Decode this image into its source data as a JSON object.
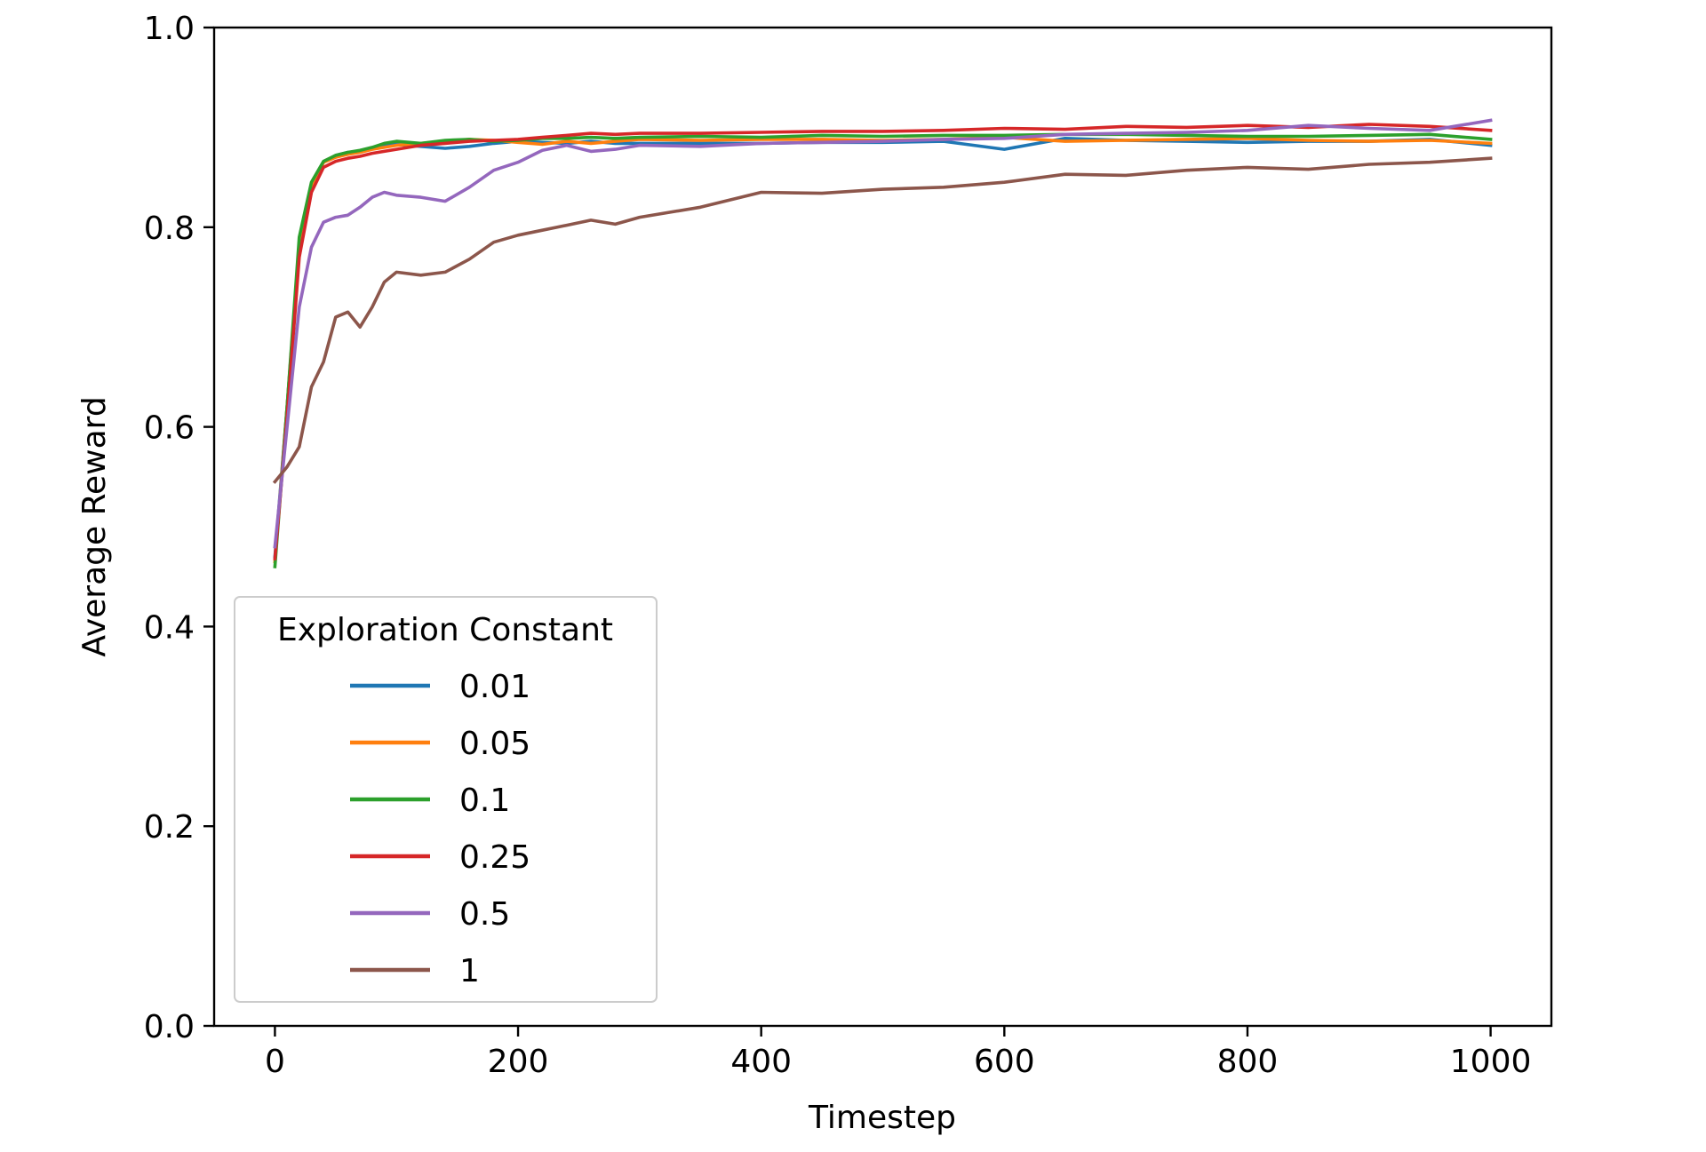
{
  "chart_data": {
    "type": "line",
    "title": "",
    "xlabel": "Timestep",
    "ylabel": "Average Reward",
    "xlim": [
      -50,
      1050
    ],
    "ylim": [
      0.0,
      1.0
    ],
    "xticks": [
      0,
      200,
      400,
      600,
      800,
      1000
    ],
    "xtick_labels": [
      "0",
      "200",
      "400",
      "600",
      "800",
      "1000"
    ],
    "yticks": [
      0.0,
      0.2,
      0.4,
      0.6,
      0.8,
      1.0
    ],
    "ytick_labels": [
      "0.0",
      "0.2",
      "0.4",
      "0.6",
      "0.8",
      "1.0"
    ],
    "grid": false,
    "legend": {
      "title": "Exploration Constant",
      "placement": "lower-left"
    },
    "x": [
      0,
      10,
      20,
      30,
      40,
      50,
      60,
      70,
      80,
      90,
      100,
      120,
      140,
      160,
      180,
      200,
      220,
      240,
      260,
      280,
      300,
      350,
      400,
      450,
      500,
      550,
      600,
      650,
      700,
      750,
      800,
      850,
      900,
      950,
      1000
    ],
    "series": [
      {
        "name": "0.01",
        "color": "#1f77b4",
        "values": [
          0.47,
          0.62,
          0.78,
          0.84,
          0.865,
          0.872,
          0.875,
          0.876,
          0.879,
          0.882,
          0.883,
          0.881,
          0.879,
          0.881,
          0.884,
          0.886,
          0.885,
          0.884,
          0.886,
          0.884,
          0.884,
          0.884,
          0.884,
          0.885,
          0.885,
          0.886,
          0.878,
          0.889,
          0.887,
          0.886,
          0.885,
          0.886,
          0.886,
          0.888,
          0.882
        ]
      },
      {
        "name": "0.05",
        "color": "#ff7f0e",
        "values": [
          0.465,
          0.62,
          0.78,
          0.84,
          0.865,
          0.87,
          0.873,
          0.875,
          0.878,
          0.88,
          0.882,
          0.884,
          0.886,
          0.888,
          0.887,
          0.885,
          0.883,
          0.886,
          0.884,
          0.886,
          0.888,
          0.887,
          0.888,
          0.888,
          0.887,
          0.888,
          0.89,
          0.886,
          0.887,
          0.888,
          0.889,
          0.887,
          0.886,
          0.887,
          0.884
        ]
      },
      {
        "name": "0.1",
        "color": "#2ca02c",
        "values": [
          0.46,
          0.62,
          0.79,
          0.845,
          0.866,
          0.872,
          0.875,
          0.877,
          0.88,
          0.884,
          0.886,
          0.884,
          0.887,
          0.888,
          0.886,
          0.887,
          0.889,
          0.889,
          0.89,
          0.889,
          0.89,
          0.891,
          0.89,
          0.892,
          0.891,
          0.892,
          0.892,
          0.893,
          0.893,
          0.892,
          0.891,
          0.891,
          0.892,
          0.893,
          0.888
        ]
      },
      {
        "name": "0.25",
        "color": "#d62728",
        "values": [
          0.468,
          0.61,
          0.77,
          0.835,
          0.86,
          0.866,
          0.869,
          0.871,
          0.874,
          0.876,
          0.878,
          0.882,
          0.884,
          0.886,
          0.887,
          0.888,
          0.89,
          0.892,
          0.894,
          0.893,
          0.894,
          0.894,
          0.895,
          0.896,
          0.896,
          0.897,
          0.899,
          0.898,
          0.901,
          0.9,
          0.902,
          0.9,
          0.903,
          0.901,
          0.897
        ]
      },
      {
        "name": "0.5",
        "color": "#9467bd",
        "values": [
          0.48,
          0.6,
          0.72,
          0.78,
          0.805,
          0.81,
          0.812,
          0.82,
          0.83,
          0.835,
          0.832,
          0.83,
          0.826,
          0.84,
          0.857,
          0.865,
          0.877,
          0.882,
          0.876,
          0.878,
          0.882,
          0.881,
          0.884,
          0.885,
          0.886,
          0.888,
          0.889,
          0.893,
          0.894,
          0.895,
          0.897,
          0.902,
          0.899,
          0.897,
          0.907
        ]
      },
      {
        "name": "1",
        "color": "#8c564b",
        "values": [
          0.545,
          0.56,
          0.58,
          0.64,
          0.665,
          0.71,
          0.715,
          0.7,
          0.72,
          0.745,
          0.755,
          0.752,
          0.755,
          0.768,
          0.785,
          0.792,
          0.797,
          0.802,
          0.807,
          0.803,
          0.81,
          0.82,
          0.835,
          0.834,
          0.838,
          0.84,
          0.845,
          0.853,
          0.852,
          0.857,
          0.86,
          0.858,
          0.863,
          0.865,
          0.869
        ]
      }
    ]
  }
}
